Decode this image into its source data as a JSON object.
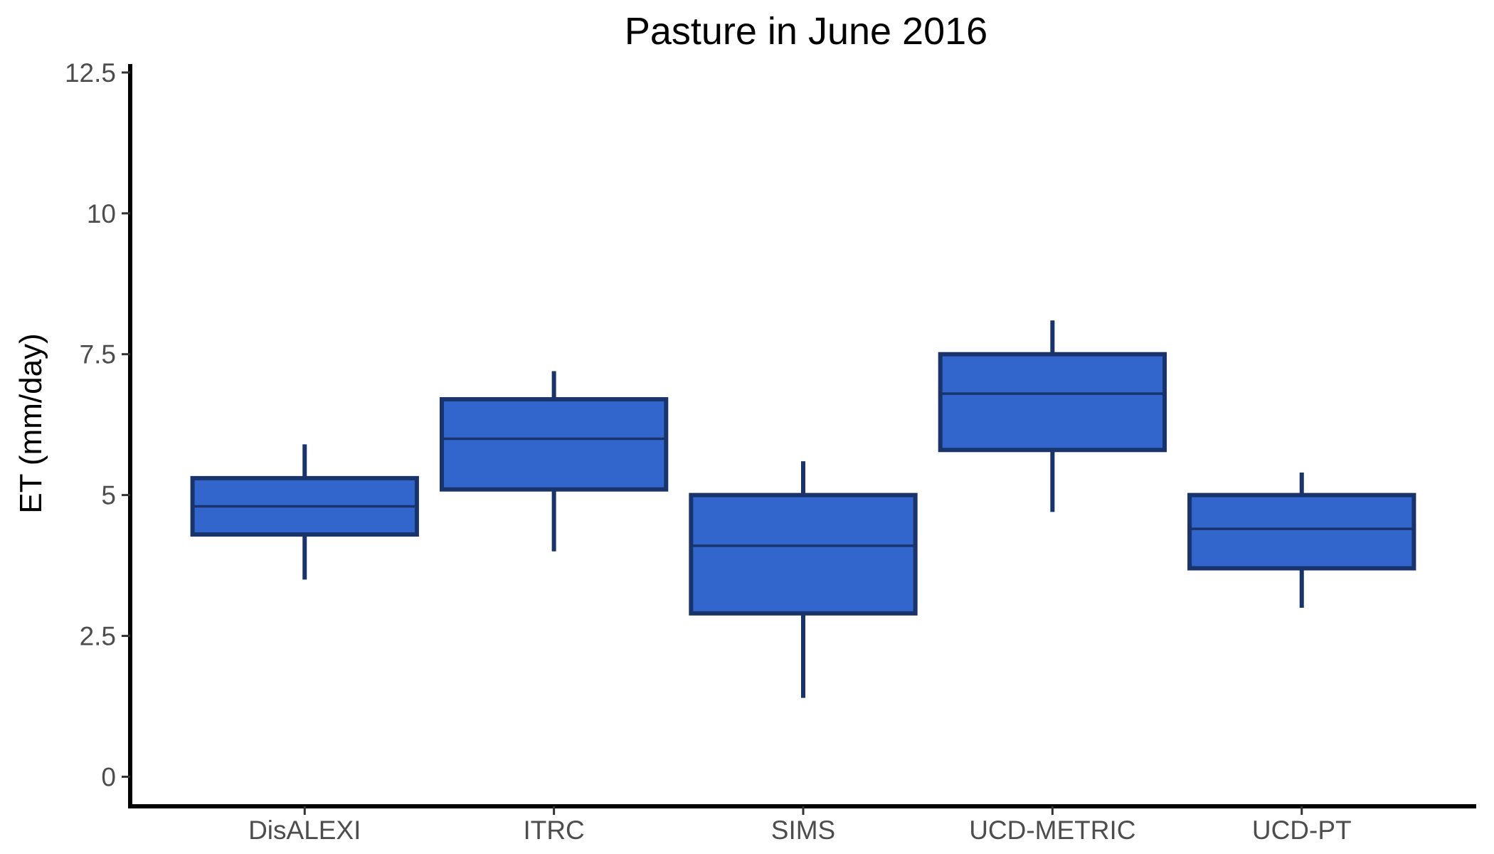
{
  "chart_data": {
    "type": "boxplot",
    "title": "Pasture in June 2016",
    "xlabel": "",
    "ylabel": "ET (mm/day)",
    "ylim": [
      -0.55,
      12.65
    ],
    "yticks": [
      0,
      2.5,
      5,
      7.5,
      10,
      12.5
    ],
    "ytick_labels": [
      "0",
      "2.5",
      "5",
      "7.5",
      "10",
      "12.5"
    ],
    "categories": [
      "DisALEXI",
      "ITRC",
      "SIMS",
      "UCD-METRIC",
      "UCD-PT"
    ],
    "boxes": [
      {
        "category": "DisALEXI",
        "whisker_low": 3.5,
        "q1": 4.3,
        "median": 4.8,
        "q3": 5.3,
        "whisker_high": 5.9
      },
      {
        "category": "ITRC",
        "whisker_low": 4.0,
        "q1": 5.1,
        "median": 6.0,
        "q3": 6.7,
        "whisker_high": 7.2
      },
      {
        "category": "SIMS",
        "whisker_low": 1.4,
        "q1": 2.9,
        "median": 4.1,
        "q3": 5.0,
        "whisker_high": 5.6
      },
      {
        "category": "UCD-METRIC",
        "whisker_low": 4.7,
        "q1": 5.8,
        "median": 6.8,
        "q3": 7.5,
        "whisker_high": 8.1
      },
      {
        "category": "UCD-PT",
        "whisker_low": 3.0,
        "q1": 3.7,
        "median": 4.4,
        "q3": 5.0,
        "whisker_high": 5.4
      }
    ],
    "grid": false,
    "legend": "none",
    "colors": {
      "box_fill": "#3366cc",
      "box_outline": "#19336b",
      "axis": "#000000"
    }
  }
}
